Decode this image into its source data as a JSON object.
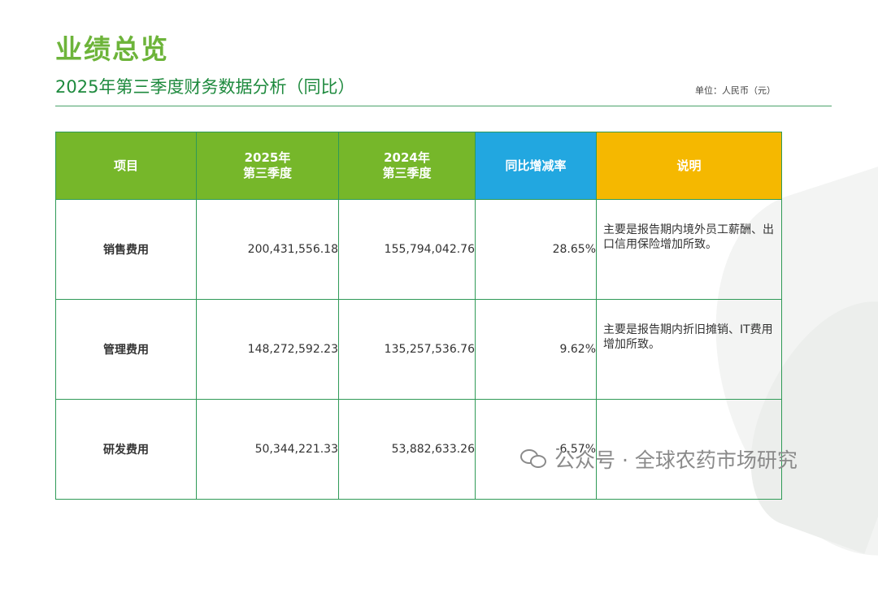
{
  "header": {
    "title": "业绩总览",
    "subtitle": "2025年第三季度财务数据分析（同比）",
    "unit": "单位：人民币（元）"
  },
  "table": {
    "headers": {
      "item": "项目",
      "col2025_line1": "2025年",
      "col2025_line2": "第三季度",
      "col2024_line1": "2024年",
      "col2024_line2": "第三季度",
      "change": "同比增减率",
      "note": "说明"
    },
    "rows": [
      {
        "item": "销售费用",
        "v2025": "200,431,556.18",
        "v2024": "155,794,042.76",
        "change": "28.65%",
        "note": "主要是报告期内境外员工薪酬、出口信用保险增加所致。"
      },
      {
        "item": "管理费用",
        "v2025": "148,272,592.23",
        "v2024": "135,257,536.76",
        "change": "9.62%",
        "note": "主要是报告期内折旧摊销、IT费用增加所致。"
      },
      {
        "item": "研发费用",
        "v2025": "50,344,221.33",
        "v2024": "53,882,633.26",
        "change": "-6.57%",
        "note": ""
      }
    ]
  },
  "watermark": {
    "icon": "wechat-icon",
    "text": "公众号 · 全球农药市场研究"
  },
  "colors": {
    "title": "#6db43a",
    "subtitle": "#1e8a3e",
    "header_green": "#76b72a",
    "header_blue": "#22a7e0",
    "header_amber": "#f5b800",
    "border": "#2f9a57"
  }
}
